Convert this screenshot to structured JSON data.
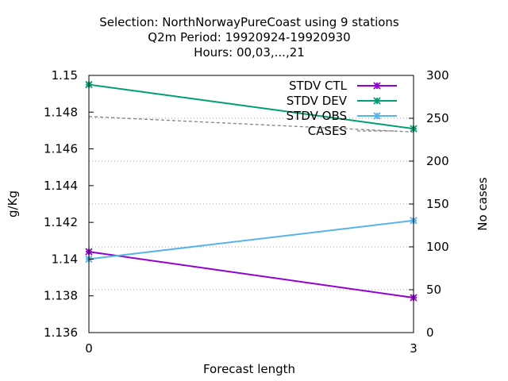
{
  "chart_data": {
    "type": "line",
    "title_lines": [
      "Selection: NorthNorwayPureCoast using     9 stations",
      "Q2m   Period: 19920924-19920930",
      "Hours:  00,03,...,21"
    ],
    "xlabel": "Forecast length",
    "ylabel": "g/Kg",
    "y2label": "No cases",
    "x": [
      0,
      3
    ],
    "x_ticks": [
      "0",
      "3"
    ],
    "xlim": [
      0,
      3
    ],
    "ylim": [
      1.136,
      1.15
    ],
    "y_ticks": [
      "1.136",
      "1.138",
      "1.14",
      "1.142",
      "1.144",
      "1.146",
      "1.148",
      "1.15"
    ],
    "y2lim": [
      0,
      300
    ],
    "y2_ticks": [
      "0",
      "50",
      "100",
      "150",
      "200",
      "250",
      "300"
    ],
    "grid": "horizontal dotted at right-axis ticks",
    "legend_position": "top-right",
    "series": [
      {
        "name": "STDV CTL",
        "axis": "y1",
        "color": "#9400d3",
        "values": [
          1.1404,
          1.1379
        ],
        "marker": "x"
      },
      {
        "name": "STDV DEV",
        "axis": "y1",
        "color": "#009e73",
        "values": [
          1.1495,
          1.1471
        ],
        "marker": "x"
      },
      {
        "name": "STDV OBS",
        "axis": "y1",
        "color": "#56b4e9",
        "values": [
          1.14,
          1.1421
        ],
        "marker": "x"
      },
      {
        "name": "CASES",
        "axis": "y2",
        "color": "#808080",
        "values": [
          252,
          234
        ],
        "marker": "none",
        "dashed": true
      }
    ]
  }
}
